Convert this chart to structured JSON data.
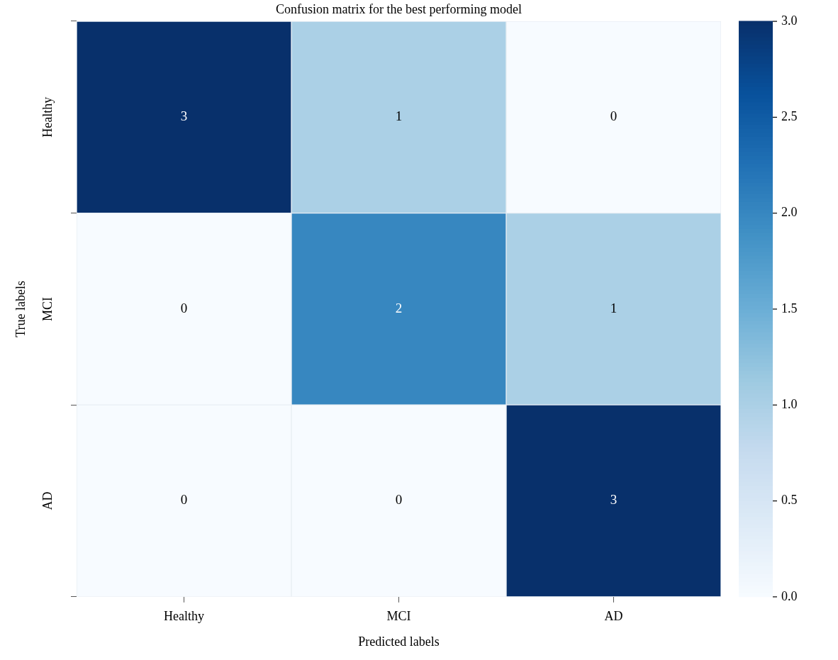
{
  "chart_data": {
    "type": "heatmap",
    "title": "Confusion matrix for the best performing model",
    "xlabel": "Predicted labels",
    "ylabel": "True labels",
    "categories": [
      "Healthy",
      "MCI",
      "AD"
    ],
    "y_categories": [
      "Healthy",
      "MCI",
      "AD"
    ],
    "cells": [
      [
        3,
        1,
        0
      ],
      [
        0,
        2,
        1
      ],
      [
        0,
        0,
        3
      ]
    ],
    "clim": [
      0,
      3
    ],
    "cticks": [
      {
        "value": 0,
        "label": "0.0"
      },
      {
        "value": 0.5,
        "label": "0.5"
      },
      {
        "value": 1,
        "label": "1.0"
      },
      {
        "value": 1.5,
        "label": "1.5"
      },
      {
        "value": 2,
        "label": "2.0"
      },
      {
        "value": 2.5,
        "label": "2.5"
      },
      {
        "value": 3,
        "label": "3.0"
      }
    ],
    "data_labels": true
  }
}
